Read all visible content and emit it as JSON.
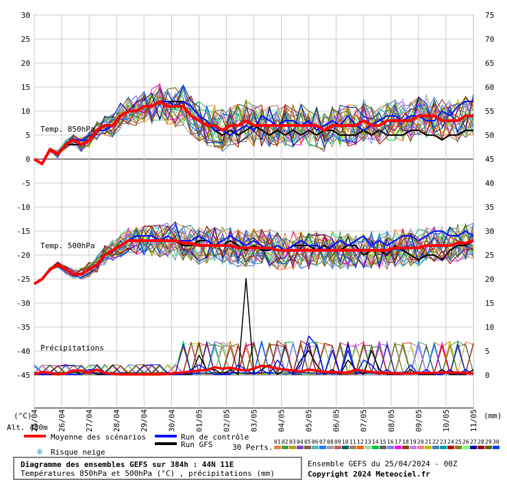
{
  "chart_data": {
    "type": "line",
    "x_dates": [
      "26/04",
      "27/04",
      "28/04",
      "29/04",
      "30/04",
      "01/05",
      "02/05",
      "03/05",
      "04/05",
      "05/05",
      "06/05",
      "07/05",
      "08/05",
      "09/05",
      "10/05",
      "11/05"
    ],
    "x_first_label": "25/04",
    "left_axis": {
      "unit": "(°C)",
      "ticks": [
        30,
        25,
        20,
        15,
        10,
        5,
        0,
        -5,
        -10,
        -15,
        -20,
        -25,
        -30,
        -35,
        -40,
        -45
      ]
    },
    "right_axis": {
      "unit": "(mm)",
      "ticks": [
        75,
        70,
        65,
        60,
        55,
        50,
        45,
        40,
        35,
        30,
        25,
        20,
        15,
        10,
        5,
        0
      ]
    },
    "panel_labels": {
      "t850": "Temp. 850hPa",
      "t500": "Temp. 500hPa",
      "precip": "Précipitations"
    },
    "altitude": "Alt. 480m",
    "legend": {
      "mean": "Moyenne des scénarios",
      "control": "Run de contrôle",
      "gfs": "Run GFS",
      "snow": "Risque neige",
      "perts": "30 Perts."
    },
    "member_codes": [
      "01",
      "02",
      "03",
      "04",
      "05",
      "06",
      "07",
      "08",
      "09",
      "10",
      "11",
      "12",
      "13",
      "14",
      "15",
      "16",
      "17",
      "18",
      "19",
      "20",
      "21",
      "22",
      "23",
      "24",
      "25",
      "26",
      "27",
      "28",
      "29",
      "30"
    ],
    "member_colors": [
      "#e08040",
      "#40a040",
      "#c0a000",
      "#8040c0",
      "#806040",
      "#40c0c0",
      "#2080ff",
      "#a0a0a0",
      "#c06060",
      "#006060",
      "#a08060",
      "#ff6000",
      "#a0e0a0",
      "#00c040",
      "#606060",
      "#8080ff",
      "#ff00ff",
      "#804000",
      "#c080ff",
      "#ff8080",
      "#c0c000",
      "#4080c0",
      "#00a0a0",
      "#c00000",
      "#808000",
      "#80ff80",
      "#0000a0",
      "#a00000",
      "#606000",
      "#0040ff"
    ],
    "series_mean_t850": [
      0,
      -1,
      2,
      1,
      3,
      4,
      3,
      4,
      6,
      7,
      7,
      9,
      10,
      10,
      11,
      11,
      12,
      11,
      11,
      11,
      9,
      8,
      7,
      7,
      6,
      7,
      7,
      8,
      7,
      7,
      7,
      7,
      7,
      7,
      7,
      7,
      7,
      6,
      7,
      7,
      7,
      7,
      8,
      7,
      7,
      8,
      8,
      8,
      8,
      9,
      9,
      9,
      8,
      8,
      8,
      9,
      9
    ],
    "series_control_t850": [
      0,
      -1,
      2,
      1,
      3,
      4,
      4,
      4,
      6,
      6,
      7,
      9,
      10,
      10,
      11,
      11,
      12,
      12,
      11,
      12,
      11,
      9,
      8,
      6,
      6,
      5,
      6,
      7,
      6,
      9,
      8,
      7,
      8,
      8,
      7,
      8,
      6,
      7,
      8,
      7,
      9,
      7,
      6,
      7,
      8,
      9,
      9,
      8,
      9,
      9,
      8,
      8,
      10,
      9,
      11,
      12,
      12
    ],
    "series_gfs_t850": [
      0,
      -1,
      2,
      1,
      3,
      3,
      3,
      4,
      6,
      6,
      7,
      9,
      10,
      10,
      11,
      11,
      12,
      12,
      12,
      12,
      11,
      9,
      8,
      6,
      5,
      6,
      5,
      6,
      7,
      6,
      5,
      6,
      5,
      6,
      5,
      6,
      5,
      6,
      6,
      5,
      5,
      5,
      6,
      5,
      6,
      5,
      5,
      5,
      6,
      6,
      5,
      5,
      4,
      5,
      5,
      6,
      6
    ],
    "series_mean_t500": [
      -26,
      -25,
      -23,
      -22,
      -23,
      -24,
      -24,
      -23,
      -22,
      -20,
      -19,
      -18,
      -17,
      -17,
      -17,
      -17,
      -17,
      -17,
      -17,
      -17.5,
      -17.5,
      -18,
      -18,
      -18,
      -18,
      -18,
      -18.5,
      -18.5,
      -18.5,
      -18.5,
      -18.5,
      -19,
      -19,
      -19,
      -19,
      -19,
      -19,
      -19,
      -19,
      -19,
      -19,
      -19,
      -19,
      -19,
      -19,
      -19,
      -18.5,
      -18.5,
      -18.5,
      -18.5,
      -18,
      -18,
      -18,
      -18,
      -17.5,
      -17.5,
      -17
    ],
    "series_control_t500": [
      -26,
      -25,
      -23,
      -22,
      -23,
      -24,
      -24,
      -23,
      -22,
      -20,
      -19,
      -18,
      -17,
      -16,
      -16,
      -16,
      -17,
      -16,
      -17,
      -17,
      -17,
      -16,
      -17,
      -18,
      -17,
      -16,
      -17,
      -18,
      -17,
      -18,
      -19,
      -18,
      -19,
      -18,
      -17,
      -18,
      -18,
      -19,
      -18,
      -17,
      -18,
      -17,
      -16,
      -18,
      -17,
      -18,
      -17,
      -16,
      -16,
      -17,
      -16,
      -15,
      -15,
      -16,
      -16,
      -15,
      -16
    ],
    "series_gfs_t500": [
      -26,
      -25,
      -23,
      -22,
      -23,
      -24,
      -24,
      -23,
      -22,
      -20,
      -19,
      -18,
      -17,
      -17,
      -17,
      -17,
      -17,
      -17,
      -17,
      -18,
      -18,
      -17,
      -17,
      -18,
      -18,
      -17,
      -18,
      -19,
      -18,
      -19,
      -19,
      -18,
      -19,
      -18,
      -18,
      -18,
      -19,
      -18,
      -19,
      -19,
      -18,
      -18,
      -20,
      -19,
      -19,
      -20,
      -18,
      -19,
      -20,
      -21,
      -20,
      -20,
      -21,
      -19,
      -18,
      -18,
      -17
    ],
    "series_mean_precip": [
      0,
      0.5,
      0.3,
      0,
      0.2,
      0.8,
      0.8,
      0.4,
      1,
      0.3,
      0.1,
      0,
      0,
      0,
      0,
      0,
      0,
      0.1,
      0.3,
      0.4,
      0.6,
      0.8,
      0.9,
      1.5,
      1.2,
      1.4,
      1,
      0.8,
      1.2,
      1.8,
      1.6,
      1.2,
      1,
      0.8,
      0.6,
      1,
      0.8,
      0.5,
      0.5,
      0.4,
      0.4,
      1,
      0.7,
      0.5,
      0.3,
      0.3,
      0.2,
      0.2,
      0.2,
      0.3,
      0.3,
      0.3,
      0.4,
      0.4,
      0.4,
      0.3,
      0.2
    ],
    "series_control_precip": [
      0,
      0,
      0,
      0,
      0,
      0,
      0,
      1,
      1,
      0,
      0,
      0,
      0,
      0,
      0,
      0,
      0,
      0,
      0,
      0,
      1,
      2,
      1,
      0,
      0,
      0,
      2,
      1,
      0,
      1,
      0,
      3,
      1,
      0,
      2,
      8,
      6,
      0,
      5,
      0,
      5,
      0,
      3,
      2,
      0,
      1,
      0,
      0,
      2,
      0,
      1,
      0,
      0,
      1,
      0,
      1,
      0
    ],
    "series_gfs_precip": [
      0,
      0,
      0,
      0,
      0,
      1,
      0,
      1,
      0,
      0,
      0,
      0,
      0,
      0,
      0,
      0,
      0,
      0,
      0,
      0,
      0,
      4,
      1,
      1,
      0,
      1,
      0,
      20,
      0,
      1,
      2,
      0,
      1,
      0,
      3,
      5,
      2,
      0,
      1,
      0,
      3,
      1,
      0,
      5,
      1,
      0,
      0,
      0,
      1,
      0,
      0,
      0,
      1,
      0,
      0,
      0,
      1
    ],
    "ylim_left": [
      -50,
      30
    ],
    "ylim_right": [
      0,
      75
    ]
  },
  "footer": {
    "title": "Diagramme des ensembles GEFS sur 384h : 44N 11E",
    "subtitle": "Températures 850hPa et 500hPa (°C) , précipitations (mm)",
    "run": "Ensemble GEFS du 25/04/2024 - 00Z",
    "copyright": "Copyright 2024 Meteociel.fr"
  }
}
